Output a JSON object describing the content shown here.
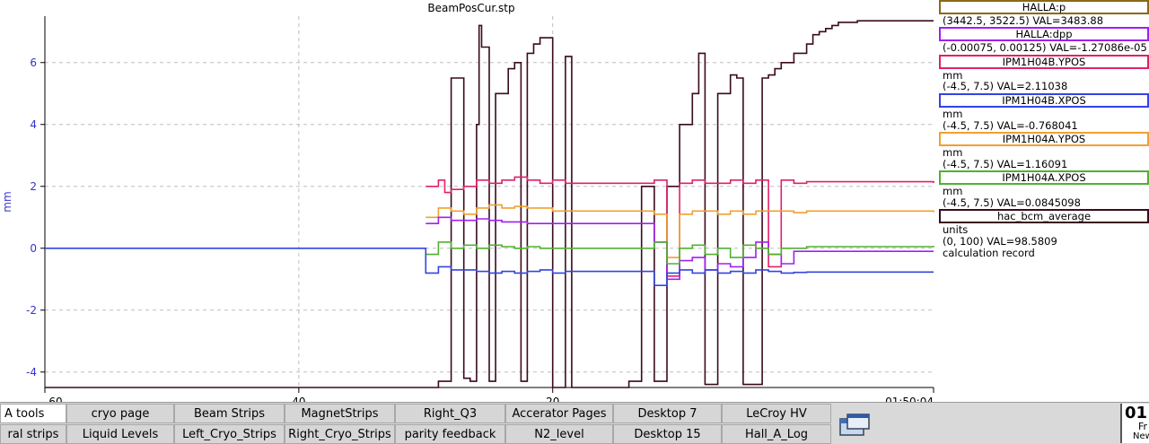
{
  "plot": {
    "title": "BeamPosCur.stp",
    "ylabel": "mm",
    "y_ticks": [
      "6",
      "4",
      "2",
      "0",
      "-2",
      "-4"
    ],
    "x_ticks": [
      "60",
      "40",
      "20",
      "01:50:04"
    ],
    "axis_color": "#3333cc",
    "grid": true
  },
  "legend": [
    {
      "name": "HALLA:p",
      "color": "#8b6914",
      "lines": [
        "(3442.5, 3522.5) VAL=3483.88"
      ]
    },
    {
      "name": "HALLA:dpp",
      "color": "#a020f0",
      "lines": [
        "(-0.00075, 0.00125) VAL=-1.27086e-05"
      ]
    },
    {
      "name": "IPM1H04B.YPOS",
      "color": "#e0206a",
      "lines": [
        "mm",
        "(-4.5, 7.5) VAL=2.11038"
      ]
    },
    {
      "name": "IPM1H04B.XPOS",
      "color": "#3344e0",
      "lines": [
        "mm",
        "(-4.5, 7.5) VAL=-0.768041"
      ]
    },
    {
      "name": "IPM1H04A.YPOS",
      "color": "#f0a030",
      "lines": [
        "mm",
        "(-4.5, 7.5) VAL=1.16091"
      ]
    },
    {
      "name": "IPM1H04A.XPOS",
      "color": "#50b030",
      "lines": [
        "mm",
        "(-4.5, 7.5) VAL=0.0845098"
      ]
    },
    {
      "name": "hac_bcm_average",
      "color": "#3a0a1e",
      "lines": [
        "units",
        "(0, 100) VAL=98.5809",
        "calculation record"
      ]
    }
  ],
  "chart_data": {
    "type": "line",
    "title": "BeamPosCur.stp",
    "ylabel": "mm",
    "xlabel": "",
    "ylim": [
      -4.5,
      7.5
    ],
    "x_tick_labels": [
      "60",
      "40",
      "20",
      "01:50:04"
    ],
    "grid": true,
    "legend_position": "right",
    "series": [
      {
        "name": "hac_bcm_average",
        "color": "#3a0a1e",
        "x": [
          -70,
          -40,
          -39,
          -38,
          -38,
          -37,
          -36.5,
          -36,
          -35.8,
          -35.6,
          -35,
          -34.5,
          -33.5,
          -33,
          -32.5,
          -32,
          -31.5,
          -31,
          -30,
          -29,
          -28.5,
          -28,
          -27.5,
          -26,
          -25,
          -24,
          -23,
          -22,
          -21,
          -20,
          -19,
          -18.5,
          -18,
          -17.5,
          -17,
          -16,
          -15.5,
          -15,
          -14.5,
          -14,
          -13.5,
          -13,
          -12.5,
          -12,
          -11,
          -10,
          -9.5,
          -9,
          -8.5,
          -8,
          -7.5,
          -7,
          -6.5,
          -6,
          -5.5,
          -5,
          -4,
          -3,
          -2,
          -1,
          0
        ],
        "y": [
          -4.5,
          -4.5,
          -4.3,
          -4.2,
          5.5,
          -4.2,
          -4.3,
          4.0,
          7.2,
          6.5,
          -4.3,
          5.0,
          5.8,
          6.0,
          -4.3,
          6.3,
          6.6,
          6.8,
          -4.5,
          6.2,
          -4.5,
          -4.5,
          -4.5,
          -4.5,
          -4.5,
          -4.3,
          2.0,
          -4.3,
          2.0,
          4.0,
          5.0,
          6.3,
          -4.4,
          -4.4,
          5.0,
          5.6,
          5.5,
          -4.4,
          -4.4,
          -4.4,
          5.5,
          5.6,
          5.8,
          6.0,
          6.3,
          6.6,
          6.9,
          7.0,
          7.1,
          7.2,
          7.3,
          7.3,
          7.3,
          7.35,
          7.35,
          7.35,
          7.35,
          7.35,
          7.35,
          7.35,
          7.35
        ]
      },
      {
        "name": "IPM1H04B.YPOS",
        "color": "#e0206a",
        "x": [
          -40,
          -39,
          -38.5,
          -38,
          -37,
          -36,
          -35,
          -34,
          -33,
          -32,
          -31,
          -30,
          -29,
          -22,
          -21,
          -20,
          -19,
          -18,
          -17,
          -16,
          -15,
          -14,
          -13,
          -12,
          -11,
          -10,
          0
        ],
        "y": [
          2.0,
          2.2,
          1.8,
          1.9,
          2.0,
          2.2,
          2.1,
          2.2,
          2.3,
          2.2,
          2.1,
          2.2,
          2.1,
          2.2,
          -0.9,
          2.1,
          2.2,
          2.1,
          2.1,
          2.2,
          2.1,
          2.2,
          -0.6,
          2.2,
          2.1,
          2.15,
          2.11
        ]
      },
      {
        "name": "IPM1H04A.YPOS",
        "color": "#f0a030",
        "x": [
          -40,
          -39,
          -38,
          -37,
          -36,
          -35,
          -34,
          -33,
          -32,
          -31,
          -30,
          -29,
          -22,
          -21,
          -20,
          -19,
          -18,
          -17,
          -16,
          -15,
          -14,
          -13,
          -12,
          -11,
          -10,
          0
        ],
        "y": [
          1.0,
          1.3,
          1.2,
          1.1,
          1.3,
          1.4,
          1.3,
          1.35,
          1.3,
          1.3,
          1.2,
          1.2,
          1.1,
          -0.3,
          1.1,
          1.2,
          1.2,
          1.1,
          1.2,
          1.1,
          1.2,
          1.2,
          1.2,
          1.15,
          1.2,
          1.16
        ]
      },
      {
        "name": "HALLA:dpp",
        "color": "#a020f0",
        "x": [
          -40,
          -39,
          -38,
          -37,
          -36,
          -35,
          -34,
          -33,
          -32,
          -31,
          -30,
          -29,
          -22,
          -21,
          -20,
          -19,
          -18,
          -17,
          -16,
          -15,
          -14,
          -13,
          -12,
          -11,
          -10,
          0
        ],
        "y": [
          0.8,
          1.0,
          0.9,
          0.9,
          0.95,
          0.9,
          0.85,
          0.85,
          0.8,
          0.8,
          0.8,
          0.8,
          0.2,
          -1.0,
          -0.4,
          -0.3,
          -0.7,
          -0.5,
          -0.6,
          -0.3,
          0.2,
          -0.2,
          -0.5,
          -0.1,
          -0.1,
          -0.1
        ]
      },
      {
        "name": "IPM1H04A.XPOS",
        "color": "#50b030",
        "x": [
          -40,
          -39,
          -38,
          -37,
          -36,
          -35,
          -34,
          -33,
          -32,
          -31,
          -30,
          -29,
          -22,
          -21,
          -20,
          -19,
          -18,
          -17,
          -16,
          -15,
          -14,
          -13,
          -12,
          -11,
          -10,
          0
        ],
        "y": [
          -0.2,
          0.2,
          0.0,
          0.1,
          0.0,
          0.1,
          0.05,
          0.0,
          0.05,
          0.0,
          0.0,
          0.0,
          0.2,
          -0.5,
          0.0,
          0.1,
          -0.2,
          0.0,
          -0.3,
          0.1,
          0.0,
          -0.2,
          0.0,
          0.0,
          0.05,
          0.08
        ]
      },
      {
        "name": "IPM1H04B.XPOS",
        "color": "#3344e0",
        "x": [
          -70,
          -41,
          -40,
          -39,
          -38,
          -37,
          -36,
          -35,
          -34,
          -33,
          -32,
          -31,
          -30,
          -29,
          -22,
          -21,
          -20,
          -19,
          -18,
          -17,
          -16,
          -15,
          -14,
          -13,
          -12,
          -11,
          -10,
          0
        ],
        "y": [
          0.0,
          0.0,
          -0.8,
          -0.6,
          -0.7,
          -0.7,
          -0.75,
          -0.8,
          -0.75,
          -0.8,
          -0.75,
          -0.7,
          -0.8,
          -0.75,
          -1.2,
          -0.8,
          -0.7,
          -0.8,
          -0.7,
          -0.8,
          -0.75,
          -0.8,
          -0.7,
          -0.75,
          -0.8,
          -0.78,
          -0.77,
          -0.77
        ]
      }
    ]
  },
  "taskbar": {
    "rows": [
      [
        "A tools",
        "cryo page",
        "Beam Strips",
        "MagnetStrips",
        "Right_Q3",
        "Accerator Pages",
        "Desktop 7",
        "LeCroy HV"
      ],
      [
        "ral strips",
        "Liquid Levels",
        "Left_Cryo_Strips",
        "Right_Cryo_Strips",
        "parity feedback",
        "N2_level",
        "Desktop 15",
        "Hall_A_Log"
      ]
    ],
    "clock": {
      "time": "01",
      "line1": "Fr",
      "line2": "New"
    }
  }
}
